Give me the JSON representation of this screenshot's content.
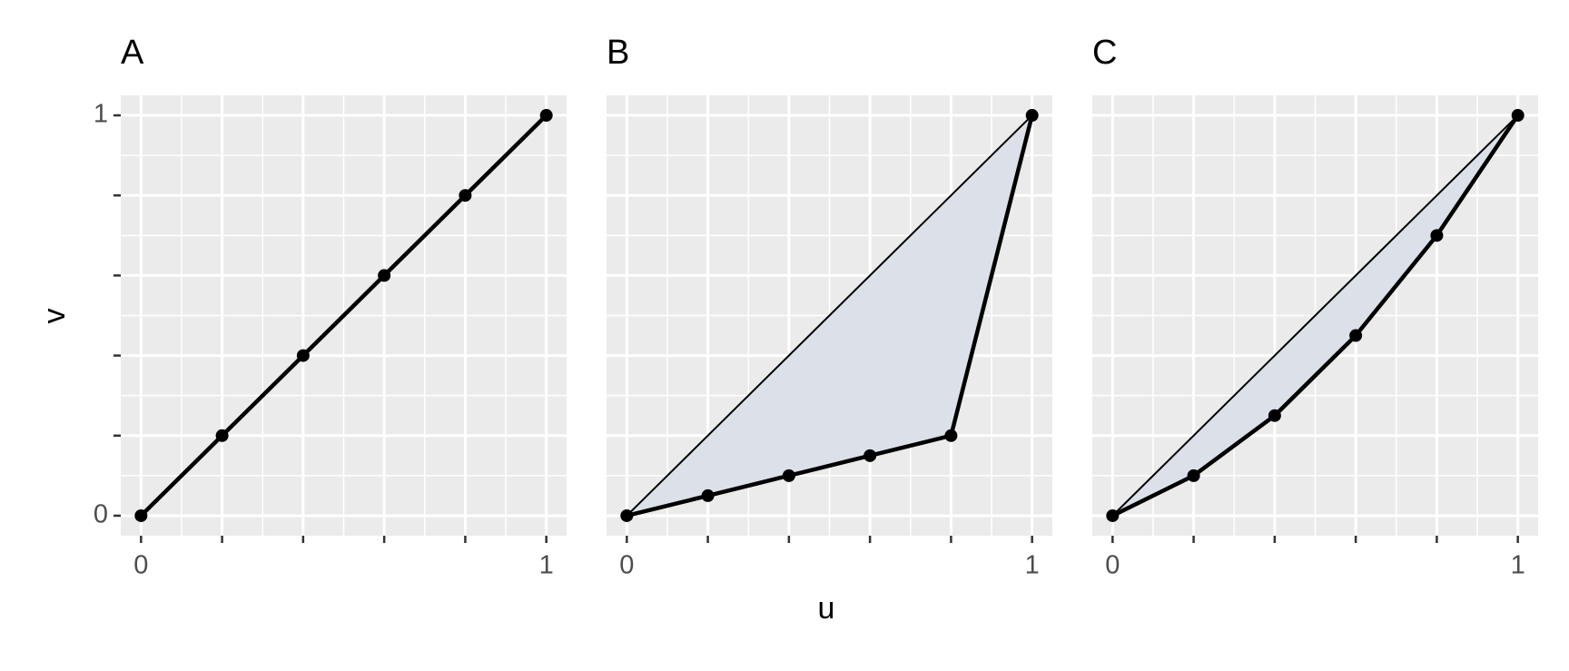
{
  "chart_data": [
    {
      "type": "line",
      "title": "A",
      "x": [
        0,
        0.2,
        0.4,
        0.6,
        0.8,
        1
      ],
      "series": [
        {
          "color": "#000000",
          "values": [
            0,
            0.2,
            0.4,
            0.6,
            0.8,
            1
          ]
        }
      ],
      "xlim": [
        -0.05,
        1.05
      ],
      "ylim": [
        -0.05,
        1.05
      ],
      "xticks": [
        0,
        1
      ],
      "yticks": [
        0,
        1
      ],
      "xminorticks": [
        0.2,
        0.4,
        0.6,
        0.8
      ],
      "yminorticks": [
        0.2,
        0.4,
        0.6,
        0.8
      ],
      "show_yticklabels": true,
      "equality_line": false,
      "grid": true
    },
    {
      "type": "line",
      "title": "B",
      "x": [
        0,
        0.2,
        0.4,
        0.6,
        0.8,
        1
      ],
      "series": [
        {
          "color": "#000000",
          "values": [
            0,
            0.05,
            0.1,
            0.15,
            0.2,
            1
          ]
        }
      ],
      "xlim": [
        -0.05,
        1.05
      ],
      "ylim": [
        -0.05,
        1.05
      ],
      "xticks": [
        0,
        1
      ],
      "yticks": [
        0,
        1
      ],
      "xminorticks": [
        0.2,
        0.4,
        0.6,
        0.8
      ],
      "yminorticks": [
        0.2,
        0.4,
        0.6,
        0.8
      ],
      "show_yticklabels": false,
      "equality_line": true,
      "area_color": "#dce1e9",
      "grid": true
    },
    {
      "type": "line",
      "title": "C",
      "x": [
        0,
        0.2,
        0.4,
        0.6,
        0.8,
        1
      ],
      "series": [
        {
          "color": "#000000",
          "values": [
            0,
            0.1,
            0.25,
            0.45,
            0.7,
            1
          ]
        }
      ],
      "xlim": [
        -0.05,
        1.05
      ],
      "ylim": [
        -0.05,
        1.05
      ],
      "xticks": [
        0,
        1
      ],
      "yticks": [
        0,
        1
      ],
      "xminorticks": [
        0.2,
        0.4,
        0.6,
        0.8
      ],
      "yminorticks": [
        0.2,
        0.4,
        0.6,
        0.8
      ],
      "show_yticklabels": false,
      "equality_line": true,
      "area_color": "#dce1e9",
      "grid": true
    }
  ],
  "x_label": "u",
  "y_label": "v"
}
